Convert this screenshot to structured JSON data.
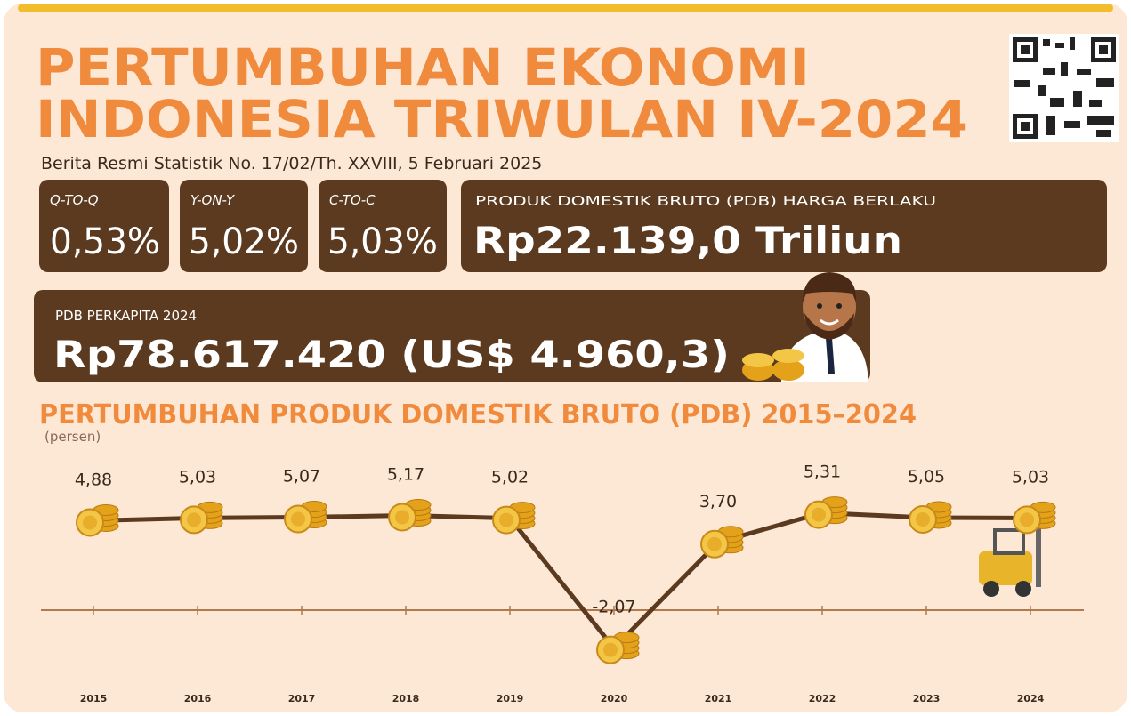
{
  "title_line1": "PERTUMBUHAN EKONOMI",
  "title_line2": "INDONESIA TRIWULAN IV-2024",
  "subtitle": "Berita Resmi Statistik No. 17/02/Th. XXVIII, 5 Februari 2025",
  "stats": [
    {
      "label": "Q-TO-Q",
      "value": "0,53%"
    },
    {
      "label": "Y-ON-Y",
      "value": "5,02%"
    },
    {
      "label": "C-TO-C",
      "value": "5,03%"
    }
  ],
  "pdb": {
    "label": "PRODUK DOMESTIK BRUTO (PDB) HARGA BERLAKU",
    "value": "Rp22.139,0 Triliun"
  },
  "per_capita": {
    "label": "PDB PERKAPITA 2024",
    "value": "Rp78.617.420 (US$ 4.960,3)"
  },
  "chart_data": {
    "type": "line",
    "title": "PERTUMBUHAN PRODUK DOMESTIK BRUTO (PDB) 2015–2024",
    "y_label": "(persen)",
    "categories": [
      "2015",
      "2016",
      "2017",
      "2018",
      "2019",
      "2020",
      "2021",
      "2022",
      "2023",
      "2024"
    ],
    "values": [
      4.88,
      5.03,
      5.07,
      5.17,
      5.02,
      -2.07,
      3.7,
      5.31,
      5.05,
      5.03
    ],
    "value_labels": [
      "4,88",
      "5,03",
      "5,07",
      "5,17",
      "5,02",
      "-2,07",
      "3,70",
      "5,31",
      "5,05",
      "5,03"
    ],
    "color": "#5b3a1f",
    "ylim": [
      -4,
      7
    ]
  }
}
